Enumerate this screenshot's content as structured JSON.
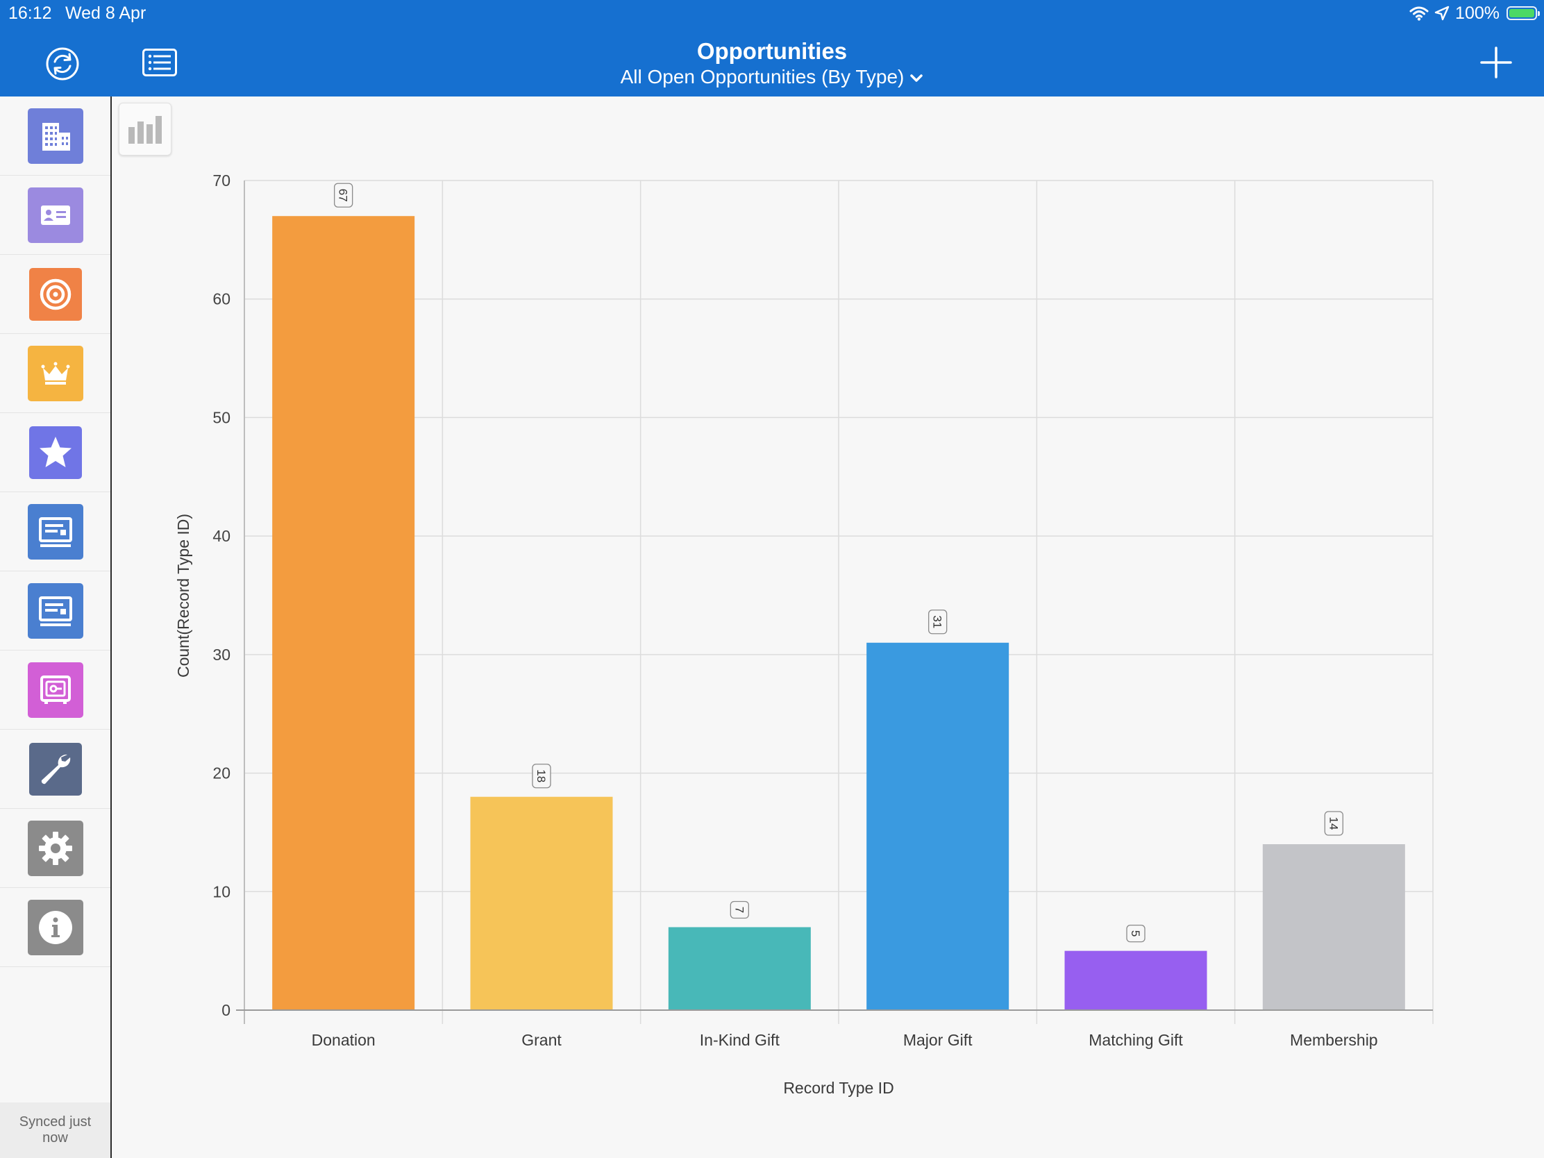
{
  "status_bar": {
    "time": "16:12",
    "date": "Wed 8 Apr",
    "battery": "100%",
    "battery_level": 1.0
  },
  "nav": {
    "title": "Opportunities",
    "subtitle": "All Open Opportunities (By Type)",
    "icons": [
      "sync-icon",
      "list-icon",
      "plus-icon"
    ]
  },
  "sidebar": {
    "items": [
      {
        "icon": "building-icon",
        "color": "#6f7fd9"
      },
      {
        "icon": "contact-card-icon",
        "color": "#9b8ae0"
      },
      {
        "icon": "target-icon",
        "color": "#f08246"
      },
      {
        "icon": "crown-icon",
        "color": "#f5b441"
      },
      {
        "icon": "star-icon",
        "color": "#7075e6"
      },
      {
        "icon": "report-icon",
        "color": "#4a7fd0"
      },
      {
        "icon": "report-icon",
        "color": "#4a7fd0"
      },
      {
        "icon": "safe-icon",
        "color": "#d25fd6"
      },
      {
        "icon": "wrench-icon",
        "color": "#5a6a8a"
      },
      {
        "icon": "gear-icon",
        "color": "#8b8b8b"
      },
      {
        "icon": "info-icon",
        "color": "#8b8b8b"
      }
    ],
    "sync_status": "Synced just now"
  },
  "chart_data": {
    "type": "bar",
    "categories": [
      "Donation",
      "Grant",
      "In-Kind Gift",
      "Major Gift",
      "Matching Gift",
      "Membership"
    ],
    "values": [
      67,
      18,
      7,
      31,
      5,
      14
    ],
    "colors": [
      "#f39c3f",
      "#f6c458",
      "#48b8b8",
      "#3a9ae0",
      "#975ff0",
      "#c3c4c8"
    ],
    "xlabel": "Record Type ID",
    "ylabel": "Count(Record Type ID)",
    "ylim": [
      0,
      70
    ],
    "yticks": [
      0,
      10,
      20,
      30,
      40,
      50,
      60,
      70
    ],
    "grid": true,
    "data_labels": true
  }
}
